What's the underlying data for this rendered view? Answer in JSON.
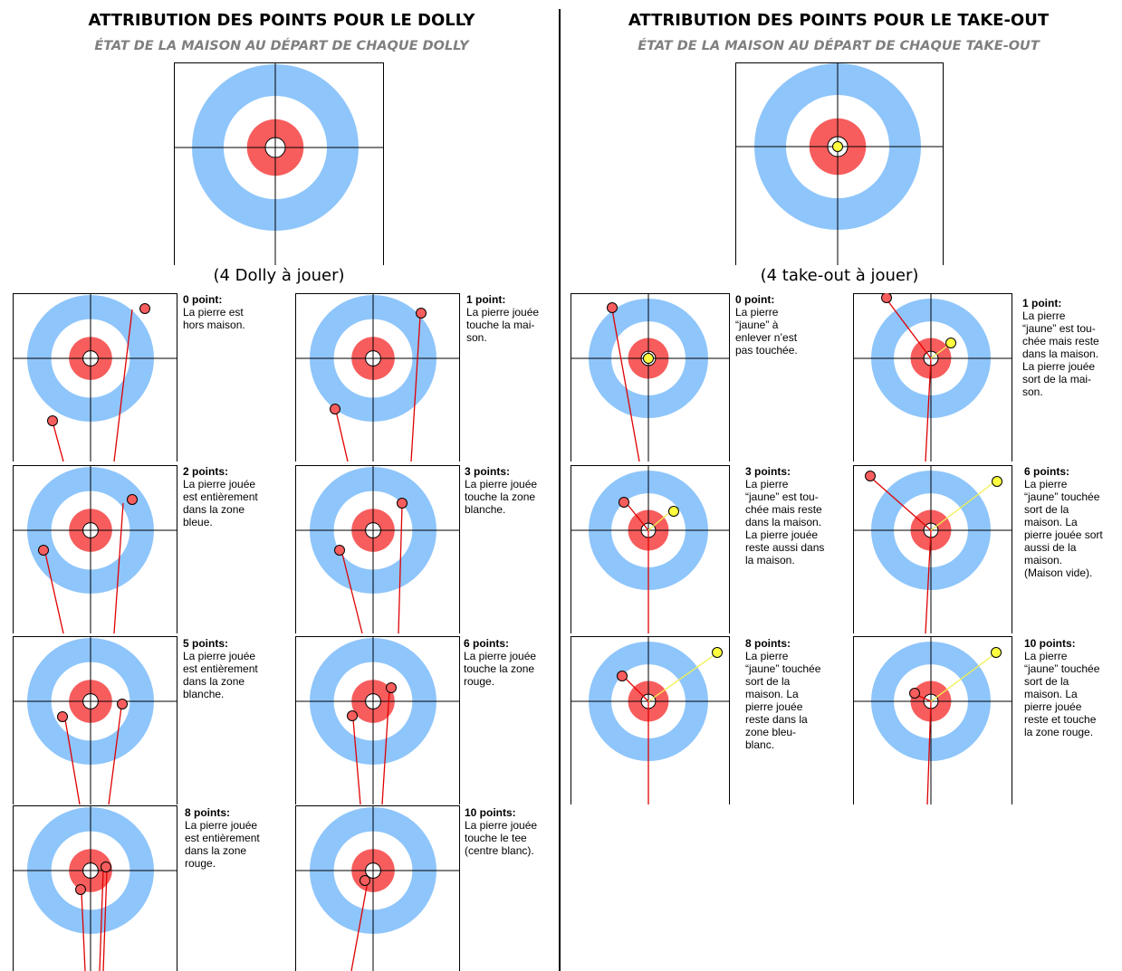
{
  "colors": {
    "blue": "#8ec5fb",
    "red": "#f75d5d",
    "white": "#ffffff",
    "line": "#000000",
    "path": "#e00000",
    "yellow": "#ffff3f",
    "yellow_path": "#f2f050",
    "subtitle": "#7f7f7f"
  },
  "icons": {
    "played_stone": "red-stone-icon",
    "target_stone": "yellow-stone-icon"
  },
  "dolly": {
    "title": "ATTRIBUTION DES POINTS POUR LE DOLLY",
    "subtitle": "ÉTAT DE LA MAISON AU DÉPART DE CHAQUE DOLLY",
    "caption": "(4 Dolly à jouer)",
    "cases": [
      {
        "points": "0 point:",
        "text": "La pierre est\nhors maison."
      },
      {
        "points": "1 point:",
        "text": "La pierre jouée\ntouche la mai-\nson."
      },
      {
        "points": "2 points:",
        "text": "La pierre jouée\nest entièrement\ndans la zone\nbleue."
      },
      {
        "points": "3 points:",
        "text": "La pierre jouée\ntouche la zone\nblanche."
      },
      {
        "points": "5 points:",
        "text": "La pierre jouée\nest entièrement\ndans la zone\nblanche."
      },
      {
        "points": "6 points:",
        "text": "La pierre jouée\ntouche la zone\nrouge."
      },
      {
        "points": "8 points:",
        "text": "La pierre jouée\nest entièrement\ndans la zone\nrouge."
      },
      {
        "points": "10 points:",
        "text": "La pierre jouée\ntouche le tee\n(centre blanc)."
      }
    ]
  },
  "takeout": {
    "title": "ATTRIBUTION DES POINTS POUR LE TAKE-OUT",
    "subtitle": "ÉTAT DE LA MAISON AU DÉPART DE CHAQUE TAKE-OUT",
    "caption": "(4 take-out à jouer)",
    "cases": [
      {
        "points": "0 point:",
        "text": "La pierre\n“jaune” à\nenlever n’est\npas touchée."
      },
      {
        "points": "1 point:",
        "text": "La pierre\n“jaune” est tou-\nchée mais reste\ndans la maison.\nLa pierre jouée\nsort de la mai-\nson."
      },
      {
        "points": "3 points:",
        "text": "La pierre\n“jaune” est tou-\nchée mais reste\ndans la maison.\nLa pierre jouée\nreste aussi dans\nla maison."
      },
      {
        "points": "6 points:",
        "text": "La pierre\n“jaune” touchée\nsort de la\nmaison. La\npierre jouée sort\naussi de la\nmaison.\n(Maison vide)."
      },
      {
        "points": "8 points:",
        "text": "La pierre\n“jaune” touchée\nsort de la\nmaison. La\npierre jouée\nreste dans la\nzone bleu-\nblanc."
      },
      {
        "points": "10 points:",
        "text": "La pierre\n“jaune” touchée\nsort de la\nmaison. La\npierre jouée\nreste et touche\nla zone rouge."
      }
    ]
  }
}
